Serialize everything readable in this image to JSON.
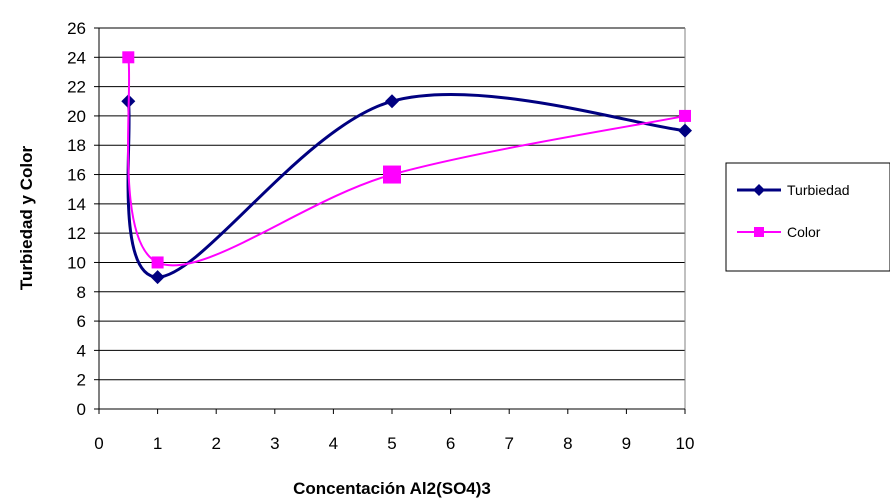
{
  "chart_data": {
    "type": "scatter",
    "title": "",
    "xlabel": "Concentación Al2(SO4)3",
    "ylabel": "Turbiedad y Color",
    "xlim": [
      0,
      10
    ],
    "ylim": [
      0,
      26
    ],
    "xticks": [
      0,
      1,
      2,
      3,
      4,
      5,
      6,
      7,
      8,
      9,
      10
    ],
    "yticks": [
      0,
      2,
      4,
      6,
      8,
      10,
      12,
      14,
      16,
      18,
      20,
      22,
      24,
      26
    ],
    "grid": "horizontal",
    "smooth": true,
    "legend_position": "right",
    "series": [
      {
        "name": "Turbiedad",
        "color": "#000080",
        "marker": "diamond",
        "x": [
          0.5,
          1,
          5,
          10
        ],
        "y": [
          21,
          9,
          21,
          19
        ]
      },
      {
        "name": "Color",
        "color": "#ff00ff",
        "marker": "square",
        "x": [
          0.5,
          1,
          5,
          10
        ],
        "y": [
          24,
          10,
          16,
          20
        ]
      }
    ]
  }
}
